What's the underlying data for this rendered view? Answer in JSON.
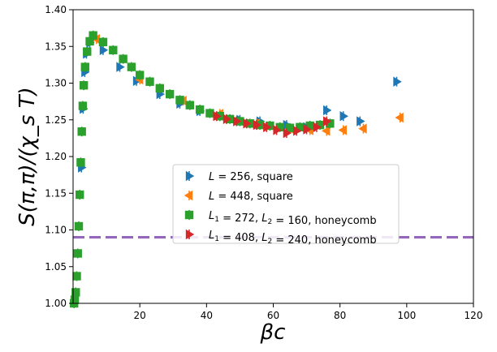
{
  "chart_data": {
    "type": "scatter",
    "title": "",
    "xlabel": "βc",
    "ylabel": "S(π,π)/(χ_s T)",
    "xlim": [
      0,
      120
    ],
    "ylim": [
      1.0,
      1.4
    ],
    "xticks": [
      20,
      40,
      60,
      80,
      100,
      120
    ],
    "yticks": [
      1.0,
      1.05,
      1.1,
      1.15,
      1.2,
      1.25,
      1.3,
      1.35,
      1.4
    ],
    "xtick_labels": [
      "20",
      "40",
      "60",
      "80",
      "100",
      "120"
    ],
    "ytick_labels": [
      "1.00",
      "1.05",
      "1.10",
      "1.15",
      "1.20",
      "1.25",
      "1.30",
      "1.35",
      "1.40"
    ],
    "grid": false,
    "legend_position": "center",
    "reference_line": {
      "y": 1.09,
      "style": "dashed",
      "color": "#9467bd"
    },
    "series": [
      {
        "name": "L = 256, square",
        "legend_parts": [
          {
            "text": "L",
            "italic": true
          },
          {
            "text": " = 256, square",
            "italic": false
          }
        ],
        "marker": "triangle-right",
        "color": "#1f77b4",
        "x": [
          2.5,
          3.0,
          3.5,
          4.0,
          5.0,
          6.0,
          9.0,
          14.0,
          19.0,
          26.0,
          32.0,
          38.0,
          44.0,
          50.0,
          56.0,
          64.0,
          70.0,
          76.0,
          81.0,
          86.0,
          97.0
        ],
        "y": [
          1.185,
          1.265,
          1.315,
          1.34,
          1.355,
          1.362,
          1.345,
          1.322,
          1.303,
          1.285,
          1.272,
          1.262,
          1.255,
          1.25,
          1.248,
          1.243,
          1.24,
          1.263,
          1.255,
          1.248,
          1.302
        ]
      },
      {
        "name": "L = 448, square",
        "legend_parts": [
          {
            "text": "L",
            "italic": true
          },
          {
            "text": " = 448, square",
            "italic": false
          }
        ],
        "marker": "triangle-left",
        "color": "#ff7f0e",
        "x": [
          7.0,
          20.0,
          33.0,
          44.0,
          55.0,
          65.0,
          71.0,
          76.0,
          81.0,
          87.0,
          98.0
        ],
        "y": [
          1.36,
          1.305,
          1.276,
          1.258,
          1.245,
          1.238,
          1.236,
          1.235,
          1.236,
          1.238,
          1.253
        ]
      },
      {
        "name": "L1 = 272, L2 = 160, honeycomb",
        "legend_parts": [
          {
            "text": "L",
            "italic": true
          },
          {
            "text": "1",
            "italic": false,
            "sub": true
          },
          {
            "text": " = 272, ",
            "italic": false
          },
          {
            "text": "L",
            "italic": true
          },
          {
            "text": "2",
            "italic": false,
            "sub": true
          },
          {
            "text": " = 160, honeycomb",
            "italic": false
          }
        ],
        "marker": "square",
        "color": "#2ca02c",
        "x": [
          0.3,
          0.5,
          0.8,
          1.1,
          1.4,
          1.7,
          2.0,
          2.3,
          2.6,
          2.9,
          3.2,
          3.6,
          4.2,
          5.0,
          6.0,
          9.0,
          12.0,
          15.0,
          17.5,
          20.0,
          23.0,
          26.0,
          29.0,
          32.0,
          35.0,
          38.0,
          41.0,
          44.0,
          47.0,
          50.0,
          53.0,
          56.0,
          59.0,
          62.0,
          65.0,
          68.0,
          71.0,
          74.0,
          77.0
        ],
        "y": [
          1.0,
          1.005,
          1.015,
          1.037,
          1.068,
          1.105,
          1.148,
          1.192,
          1.234,
          1.269,
          1.297,
          1.322,
          1.343,
          1.357,
          1.365,
          1.356,
          1.345,
          1.333,
          1.322,
          1.311,
          1.302,
          1.293,
          1.285,
          1.277,
          1.27,
          1.264,
          1.259,
          1.255,
          1.251,
          1.248,
          1.245,
          1.243,
          1.242,
          1.24,
          1.239,
          1.24,
          1.242,
          1.243,
          1.245
        ]
      },
      {
        "name": "L1 = 408, L2 = 240, honeycomb",
        "legend_parts": [
          {
            "text": "L",
            "italic": true
          },
          {
            "text": "1",
            "italic": false,
            "sub": true
          },
          {
            "text": " = 408, ",
            "italic": false
          },
          {
            "text": "L",
            "italic": true
          },
          {
            "text": "2",
            "italic": false,
            "sub": true
          },
          {
            "text": " = 240, honeycomb",
            "italic": false
          }
        ],
        "marker": "triangle-right",
        "color": "#d62728",
        "x": [
          43.0,
          46.0,
          49.0,
          52.0,
          55.0,
          58.0,
          61.0,
          64.0,
          67.0,
          70.0,
          73.0,
          76.0
        ],
        "y": [
          1.255,
          1.251,
          1.248,
          1.245,
          1.243,
          1.24,
          1.236,
          1.232,
          1.235,
          1.237,
          1.24,
          1.248
        ]
      }
    ]
  }
}
